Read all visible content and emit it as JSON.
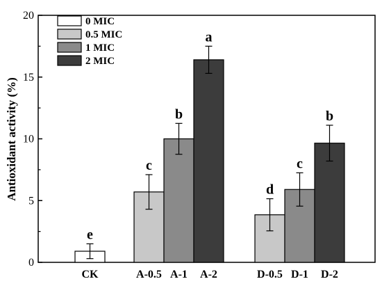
{
  "chart_data": {
    "type": "bar",
    "ylabel": "Antioxidant activity (%)",
    "ylim": [
      0,
      20
    ],
    "yticks": [
      0,
      5,
      10,
      15,
      20
    ],
    "legend_placement": "top-left",
    "series": [
      {
        "name": "0 MIC",
        "color": "#ffffff"
      },
      {
        "name": "0.5 MIC",
        "color": "#c8c8c8"
      },
      {
        "name": "1 MIC",
        "color": "#8a8a8a"
      },
      {
        "name": "2 MIC",
        "color": "#3c3c3c"
      }
    ],
    "groups": [
      {
        "label": "CK",
        "bars": [
          {
            "category": "CK",
            "series": 0,
            "value": 0.9,
            "error": 0.6,
            "letter": "e"
          }
        ]
      },
      {
        "label": "A",
        "bars": [
          {
            "category": "A-0.5",
            "series": 1,
            "value": 5.7,
            "error": 1.4,
            "letter": "c"
          },
          {
            "category": "A-1",
            "series": 2,
            "value": 10.0,
            "error": 1.25,
            "letter": "b"
          },
          {
            "category": "A-2",
            "series": 3,
            "value": 16.4,
            "error": 1.1,
            "letter": "a"
          }
        ]
      },
      {
        "label": "D",
        "bars": [
          {
            "category": "D-0.5",
            "series": 1,
            "value": 3.85,
            "error": 1.3,
            "letter": "d"
          },
          {
            "category": "D-1",
            "series": 2,
            "value": 5.9,
            "error": 1.35,
            "letter": "c"
          },
          {
            "category": "D-2",
            "series": 3,
            "value": 9.65,
            "error": 1.45,
            "letter": "b"
          }
        ]
      }
    ]
  }
}
